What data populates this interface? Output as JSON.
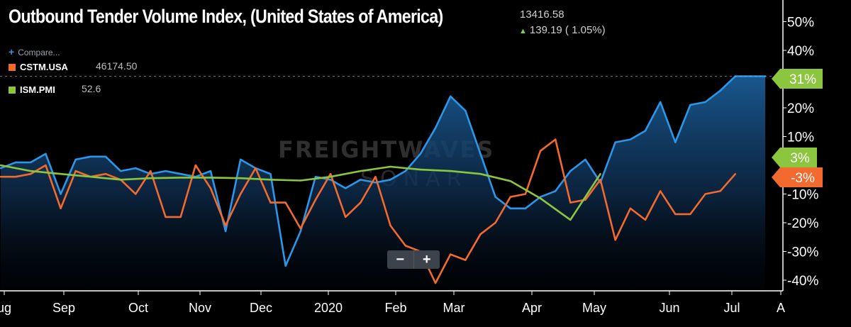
{
  "header": {
    "title": "Outbound Tender Volume Index, (United States of America)",
    "last_value": "13416.58",
    "change": "139.19 ( 1.05%)",
    "change_direction": "up"
  },
  "legend": {
    "compare_label": "Compare...",
    "items": [
      {
        "name": "CSTM.USA",
        "value": "46174.50",
        "color": "#f26a2e"
      },
      {
        "name": "ISM.PMI",
        "value": "52.6",
        "color": "#8cc63f"
      }
    ]
  },
  "watermark": {
    "line1": "FREIGHTWAVES",
    "line2": "SONAR"
  },
  "zoom": {
    "minus": "−",
    "plus": "+"
  },
  "colors": {
    "background": "#000000",
    "otvi": "#2a97e8",
    "cstm": "#f26a2e",
    "ism": "#8cc63f",
    "axis": "#ffffff"
  },
  "chart_data": {
    "type": "line",
    "x_labels": [
      "ug",
      "Sep",
      "Oct",
      "Nov",
      "Dec",
      "2020",
      "Feb",
      "Mar",
      "Apr",
      "May",
      "Jun",
      "Jul",
      "A"
    ],
    "y_ticks": [
      "50%",
      "40%",
      "30%",
      "20%",
      "10%",
      "0%",
      "-10%",
      "-20%",
      "-30%",
      "-40%"
    ],
    "ylim": [
      -40,
      50
    ],
    "badges": [
      {
        "label": "31%",
        "value": 31,
        "color": "#8cc63f"
      },
      {
        "label": "3%",
        "value": 3,
        "color": "#8cc63f"
      },
      {
        "label": "-3%",
        "value": -3,
        "color": "#f26a2e"
      }
    ],
    "series": [
      {
        "name": "Outbound Tender Volume Index",
        "color": "#2a97e8",
        "area": true,
        "x": [
          0,
          1,
          2,
          3,
          4,
          5,
          6,
          7,
          8,
          9,
          10,
          11,
          12,
          13,
          14,
          15,
          16,
          17,
          18,
          19,
          20,
          21,
          22,
          23,
          24,
          25,
          26,
          27,
          28,
          29,
          30,
          31,
          32,
          33,
          34,
          35,
          36,
          37,
          38,
          39,
          40,
          41,
          42,
          43,
          44,
          45,
          46,
          47,
          48,
          49,
          50,
          51
        ],
        "values": [
          -1,
          1,
          1,
          4,
          -10,
          2,
          3,
          3,
          -2,
          -1,
          -3,
          -2,
          -3,
          -4,
          -2,
          -23,
          2,
          -1,
          -3,
          -35,
          -23,
          -4,
          -5,
          -8,
          -5,
          -6,
          -5,
          -2,
          4,
          13,
          24,
          19,
          4,
          -11,
          -15,
          -15,
          -11,
          -9,
          -2,
          2,
          -6,
          8,
          9,
          12,
          22,
          8,
          21,
          22,
          26,
          31,
          31,
          31
        ]
      },
      {
        "name": "CSTM.USA",
        "color": "#f26a2e",
        "area": false,
        "x": [
          0,
          1,
          2,
          3,
          4,
          5,
          6,
          7,
          8,
          9,
          10,
          11,
          12,
          13,
          14,
          15,
          16,
          17,
          18,
          19,
          20,
          21,
          22,
          23,
          24,
          25,
          26,
          27,
          28,
          29,
          30,
          31,
          32,
          33,
          34,
          35,
          36,
          37,
          38,
          39,
          40,
          41,
          42,
          43,
          44,
          45,
          46,
          47,
          48,
          49
        ],
        "values": [
          -4,
          -4,
          -3,
          0,
          -15,
          -2,
          -4,
          -3,
          -5,
          -10,
          -2,
          -18,
          -18,
          0,
          -8,
          -21,
          -10,
          -1,
          -13,
          -13,
          -22,
          -12,
          -3,
          -18,
          -13,
          -4,
          -21,
          -28,
          -30,
          -41,
          -31,
          -33,
          -24,
          -20,
          -11,
          -10,
          5,
          9,
          -13,
          -12,
          -5,
          -26,
          -15,
          -19,
          -9,
          -17,
          -17,
          -10,
          -9,
          -3
        ]
      },
      {
        "name": "ISM.PMI",
        "color": "#8cc63f",
        "area": false,
        "x": [
          0,
          2,
          4,
          6,
          8,
          10,
          12,
          14,
          16,
          18,
          20,
          22,
          24,
          26,
          28,
          30,
          32,
          34,
          36,
          38,
          40
        ],
        "values": [
          0,
          -2,
          -3,
          -4,
          -5,
          -4.5,
          -4.3,
          -4.3,
          -4.5,
          -5,
          -5.3,
          -4,
          -2,
          -0.5,
          -1.5,
          -2,
          -3,
          -5.5,
          -11.5,
          -19,
          -3
        ]
      }
    ]
  }
}
